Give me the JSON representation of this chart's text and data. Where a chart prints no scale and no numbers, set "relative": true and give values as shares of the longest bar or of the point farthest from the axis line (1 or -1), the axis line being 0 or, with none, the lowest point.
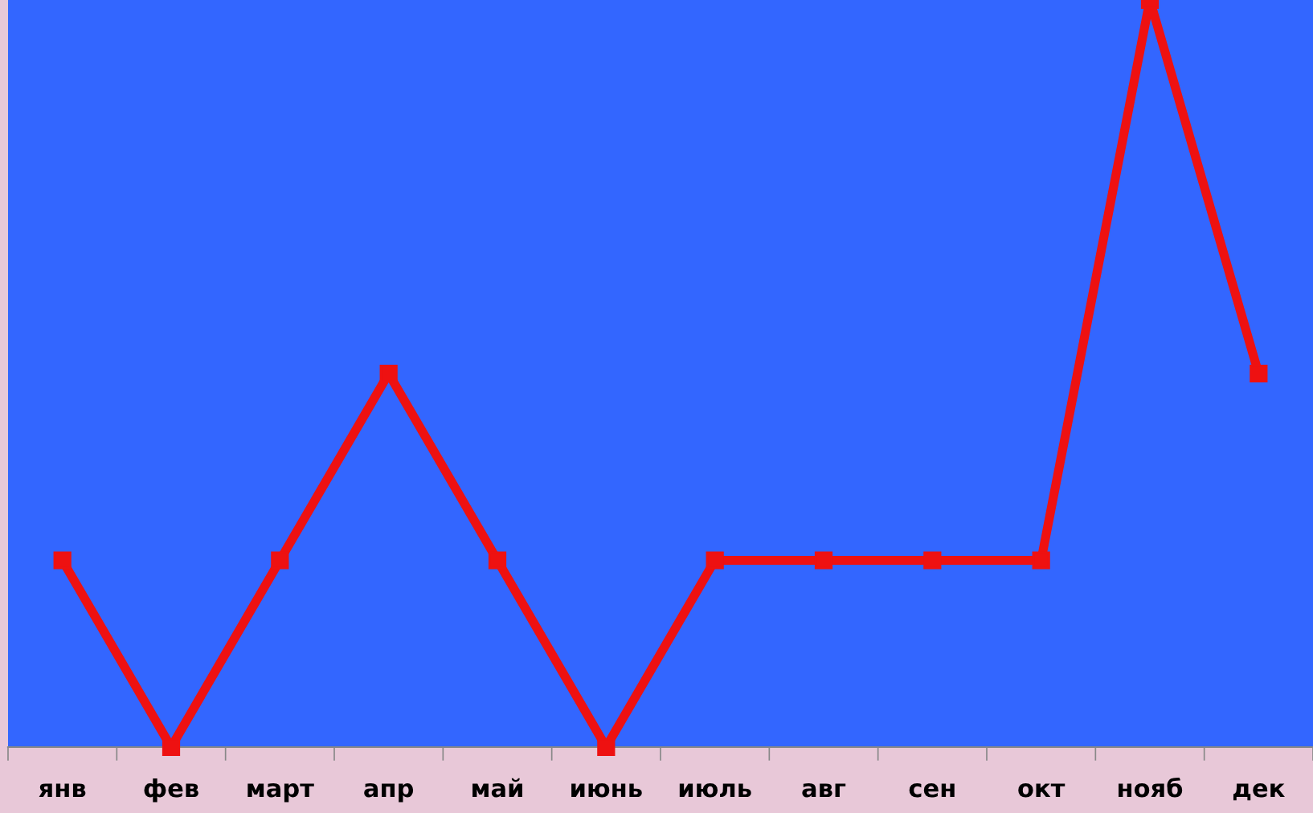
{
  "chart_data": {
    "type": "line",
    "relative": true,
    "categories": [
      "янв",
      "фев",
      "март",
      "апр",
      "май",
      "июнь",
      "июль",
      "авг",
      "сен",
      "окт",
      "нояб",
      "дек"
    ],
    "series": [
      {
        "color": "#ee1111",
        "values": [
          0.25,
          0,
          0.25,
          0.5,
          0.25,
          0,
          0.25,
          0.25,
          0.25,
          0.25,
          1,
          0.5
        ]
      }
    ],
    "marker": "square",
    "line_style": "solid",
    "grid": false,
    "legend": false
  }
}
